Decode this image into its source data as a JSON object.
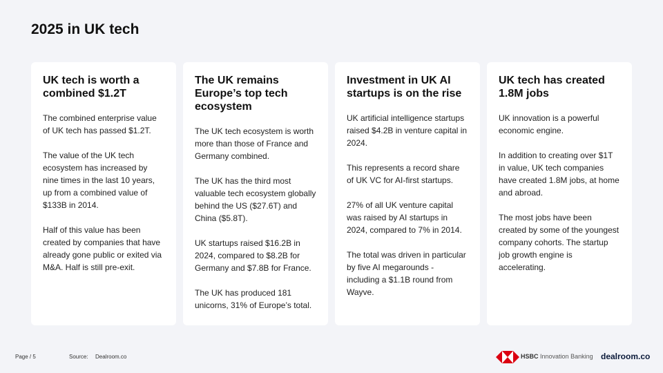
{
  "header": {
    "title": "2025 in UK tech"
  },
  "cards": [
    {
      "title": "UK tech is worth a combined $1.2T",
      "paragraphs": [
        "The combined enterprise value of UK tech has passed $1.2T.",
        "The value of the UK tech ecosystem has increased by nine times in the last 10 years, up from a combined value of $133B in 2014.",
        "Half of this value has been created by companies that have already gone public or exited via M&A. Half is still pre-exit."
      ]
    },
    {
      "title": "The UK remains Europe’s top tech ecosystem",
      "paragraphs": [
        "The UK tech ecosystem is worth more than those of France and Germany combined.",
        "The UK has the third most valuable tech ecosystem globally behind the US ($27.6T) and China ($5.8T).",
        "UK startups raised $16.2B in 2024, compared to $8.2B for Germany and $7.8B for France.",
        "The UK has produced 181 unicorns, 31% of Europe’s total."
      ]
    },
    {
      "title": "Investment in UK AI startups is on the rise",
      "paragraphs": [
        "UK artificial intelligence startups raised $4.2B in venture capital in 2024.",
        "This represents a record share of UK VC for AI-first startups.",
        "27% of all UK venture capital was raised by AI startups in 2024, compared to 7% in 2014.",
        "The total was driven in particular by five AI megarounds - including a $1.1B round from Wayve."
      ]
    },
    {
      "title": "UK tech has created 1.8M jobs",
      "paragraphs": [
        "UK innovation is a powerful economic engine.",
        "In addition to creating over $1T in value, UK tech companies have created 1.8M jobs, at home and abroad.",
        "The most jobs have been created by some of the youngest company cohorts. The startup job growth engine is accelerating."
      ]
    }
  ],
  "footer": {
    "page": "Page / 5",
    "source_label": "Source:",
    "source": "Dealroom.co",
    "hsbc_brand": "HSBC",
    "hsbc_unit": "Innovation Banking",
    "dealroom_logo": "dealroom.co"
  }
}
